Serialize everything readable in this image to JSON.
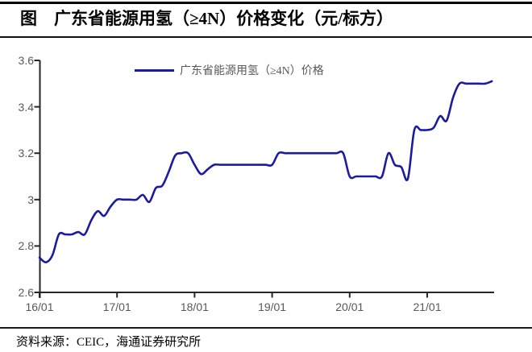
{
  "page": {
    "title": "图　广东省能源用氢（≥4N）价格变化（元/标方）",
    "source_note": "资料来源：CEIC，海通证券研究所"
  },
  "legend": {
    "label": "广东省能源用氢（≥4N）价格"
  },
  "chart_data": {
    "type": "line",
    "title": "广东省能源用氢（≥4N）价格变化（元/标方）",
    "grid": false,
    "legend_position": "top-center",
    "ylim": [
      2.6,
      3.6
    ],
    "y_tick_labels": [
      "2.6",
      "2.8",
      "3",
      "3.2",
      "3.4",
      "3.6"
    ],
    "x_tick_labels": [
      "16/01",
      "17/01",
      "18/01",
      "19/01",
      "20/01",
      "21/01"
    ],
    "series": [
      {
        "name": "广东省能源用氢（≥4N）价格",
        "x_start": "2016-01",
        "frequency": "monthly",
        "values": [
          2.75,
          2.73,
          2.76,
          2.85,
          2.85,
          2.85,
          2.86,
          2.85,
          2.91,
          2.95,
          2.93,
          2.97,
          3.0,
          3.0,
          3.0,
          3.0,
          3.02,
          2.99,
          3.05,
          3.06,
          3.12,
          3.19,
          3.2,
          3.2,
          3.15,
          3.11,
          3.13,
          3.15,
          3.15,
          3.15,
          3.15,
          3.15,
          3.15,
          3.15,
          3.15,
          3.15,
          3.15,
          3.2,
          3.2,
          3.2,
          3.2,
          3.2,
          3.2,
          3.2,
          3.2,
          3.2,
          3.2,
          3.2,
          3.1,
          3.1,
          3.1,
          3.1,
          3.1,
          3.1,
          3.2,
          3.15,
          3.14,
          3.09,
          3.3,
          3.3,
          3.3,
          3.31,
          3.36,
          3.34,
          3.44,
          3.5,
          3.5,
          3.5,
          3.5,
          3.5,
          3.51
        ]
      }
    ],
    "colors": {
      "line": "#1b1ba0",
      "axis": "#262626",
      "tick_label": "#595959"
    }
  }
}
